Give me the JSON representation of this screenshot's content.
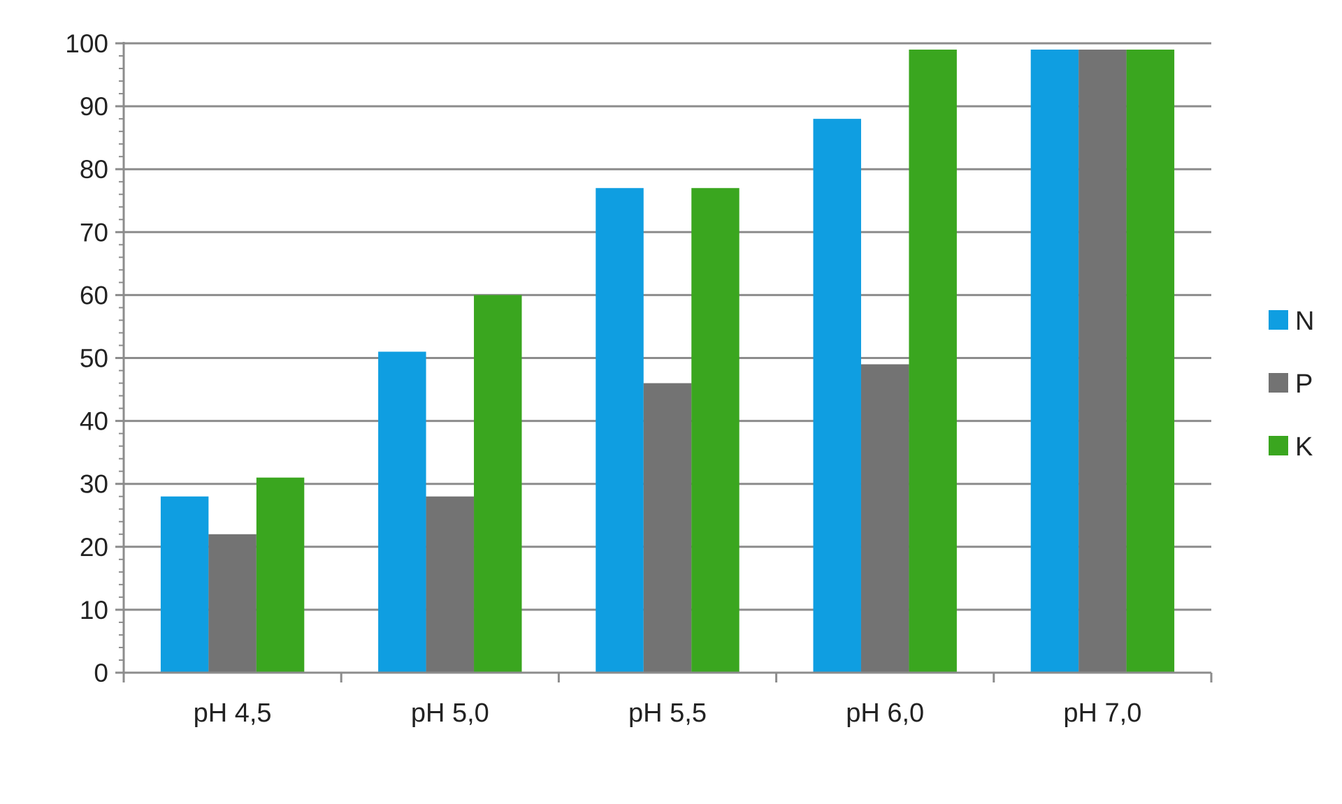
{
  "chart_data": {
    "type": "bar",
    "title": "",
    "xlabel": "",
    "ylabel": "",
    "categories": [
      "pH 4,5",
      "pH 5,0",
      "pH 5,5",
      "pH 6,0",
      "pH 7,0"
    ],
    "series": [
      {
        "name": "N",
        "color": "#0f9ee1",
        "values": [
          28,
          51,
          77,
          88,
          99
        ]
      },
      {
        "name": "P",
        "color": "#737373",
        "values": [
          22,
          28,
          46,
          49,
          99
        ]
      },
      {
        "name": "K",
        "color": "#3aa61f",
        "values": [
          31,
          60,
          77,
          99,
          99
        ]
      }
    ],
    "ylim": [
      0,
      100
    ],
    "yticks": [
      0,
      10,
      20,
      30,
      40,
      50,
      60,
      70,
      80,
      90,
      100
    ],
    "ytick_labels": [
      "0",
      "10",
      "20",
      "30",
      "40",
      "50",
      "60",
      "70",
      "80",
      "90",
      "100"
    ],
    "grid": true,
    "gridline_color": "#8c8c8c",
    "axis_color": "#8c8c8c",
    "legend_position": "right"
  }
}
